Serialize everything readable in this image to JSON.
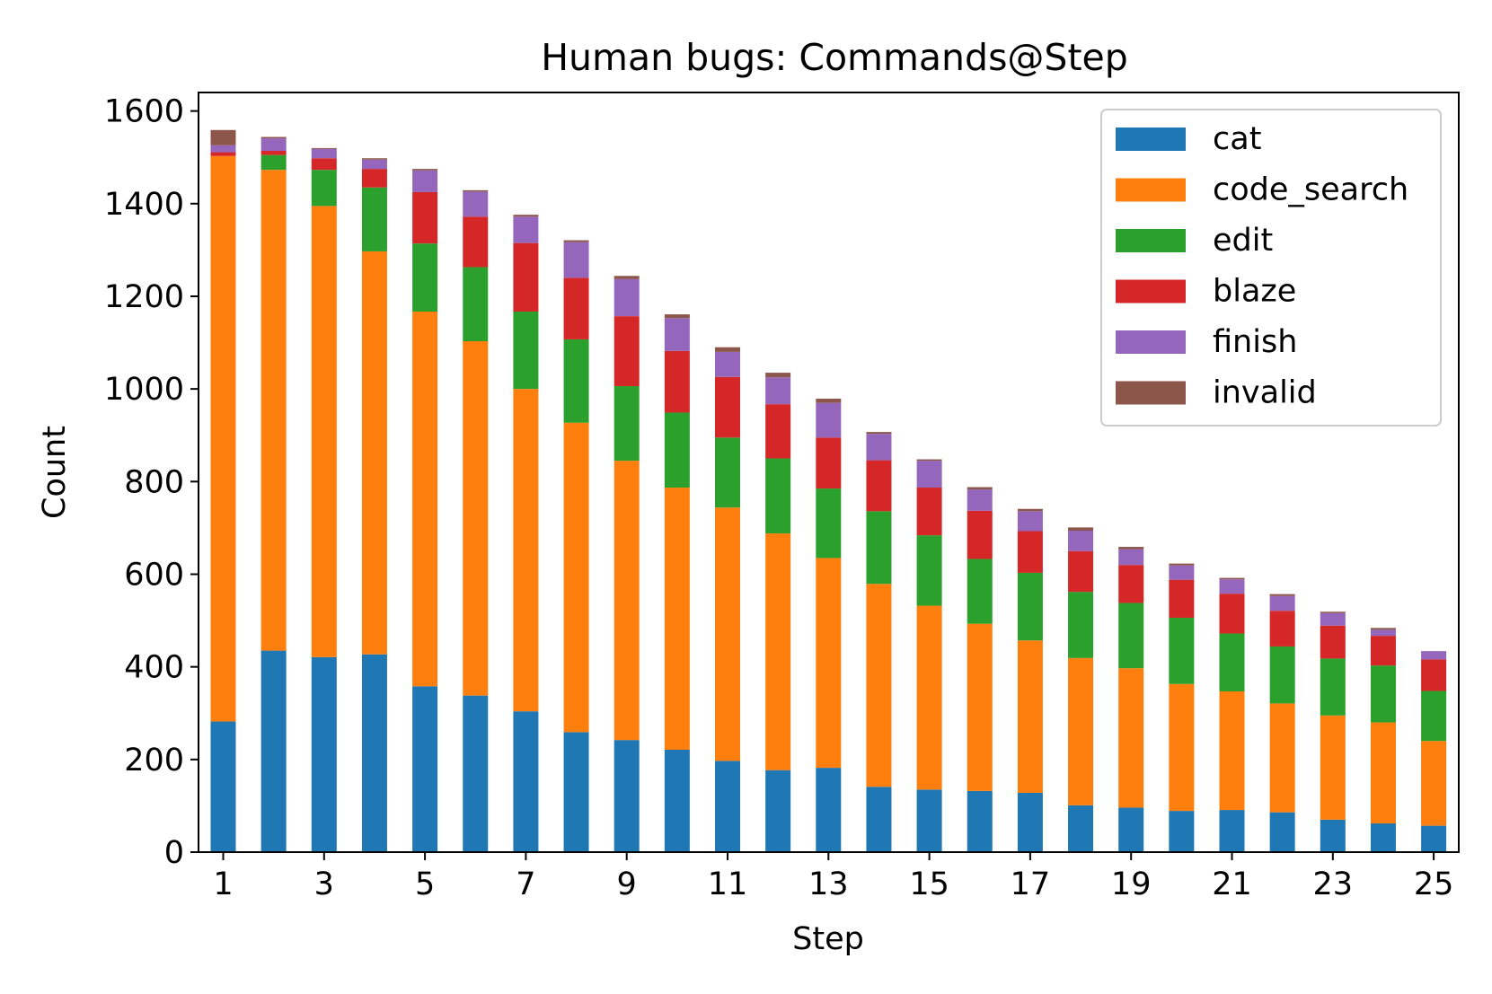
{
  "chart_data": {
    "type": "bar",
    "stacked": true,
    "title": "Human bugs: Commands@Step",
    "xlabel": "Step",
    "ylabel": "Count",
    "ylim": [
      0,
      1640
    ],
    "yticks": [
      0,
      200,
      400,
      600,
      800,
      1000,
      1200,
      1400,
      1600
    ],
    "categories": [
      "1",
      "2",
      "3",
      "4",
      "5",
      "6",
      "7",
      "8",
      "9",
      "10",
      "11",
      "12",
      "13",
      "14",
      "15",
      "16",
      "17",
      "18",
      "19",
      "20",
      "21",
      "22",
      "23",
      "24",
      "25"
    ],
    "xtick_labels": [
      "1",
      "3",
      "5",
      "7",
      "9",
      "11",
      "13",
      "15",
      "17",
      "19",
      "21",
      "23",
      "25"
    ],
    "legend_position": "top-right",
    "series": [
      {
        "name": "cat",
        "color": "#1f77b4",
        "values": [
          282,
          435,
          421,
          427,
          358,
          338,
          304,
          259,
          242,
          221,
          197,
          177,
          182,
          141,
          135,
          132,
          128,
          101,
          96,
          89,
          91,
          86,
          70,
          62,
          57
        ]
      },
      {
        "name": "code_search",
        "color": "#ff7f0e",
        "values": [
          1221,
          1038,
          974,
          870,
          809,
          765,
          696,
          668,
          603,
          566,
          547,
          511,
          453,
          438,
          397,
          361,
          329,
          318,
          301,
          274,
          256,
          235,
          225,
          218,
          183
        ]
      },
      {
        "name": "edit",
        "color": "#2ca02c",
        "values": [
          0,
          32,
          78,
          138,
          147,
          160,
          167,
          180,
          161,
          162,
          151,
          162,
          150,
          157,
          152,
          140,
          146,
          143,
          141,
          143,
          125,
          123,
          123,
          123,
          108
        ]
      },
      {
        "name": "blaze",
        "color": "#d62728",
        "values": [
          8,
          9,
          25,
          40,
          111,
          109,
          148,
          133,
          151,
          133,
          131,
          117,
          110,
          110,
          103,
          104,
          90,
          88,
          82,
          82,
          86,
          77,
          71,
          64,
          68
        ]
      },
      {
        "name": "finish",
        "color": "#9467bd",
        "values": [
          15,
          27,
          20,
          20,
          47,
          54,
          57,
          77,
          80,
          71,
          54,
          58,
          75,
          57,
          58,
          46,
          43,
          44,
          34,
          31,
          31,
          32,
          27,
          13,
          18
        ]
      },
      {
        "name": "invalid",
        "color": "#8c564b",
        "values": [
          33,
          3,
          2,
          3,
          3,
          3,
          4,
          4,
          7,
          8,
          10,
          10,
          9,
          4,
          3,
          5,
          5,
          7,
          5,
          4,
          3,
          4,
          3,
          4,
          0
        ]
      }
    ]
  }
}
